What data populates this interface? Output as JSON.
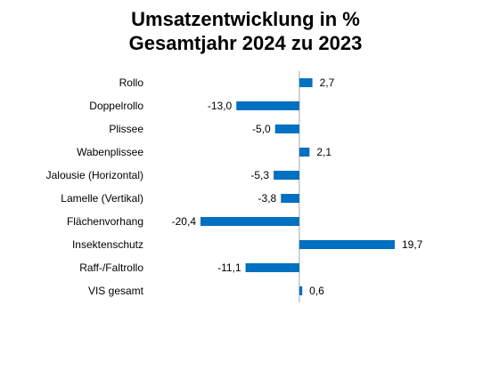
{
  "chart_data": {
    "type": "bar",
    "orientation": "horizontal",
    "title_lines": [
      "Umsatzentwicklung in %",
      "Gesamtjahr 2024 zu 2023"
    ],
    "categories": [
      "Rollo",
      "Doppelrollo",
      "Plissee",
      "Wabenplissee",
      "Jalousie (Horizontal)",
      "Lamelle (Vertikal)",
      "Flächenvorhang",
      "Insektenschutz",
      "Raff-/Faltrollo",
      "VIS gesamt"
    ],
    "values": [
      2.7,
      -13.0,
      -5.0,
      2.1,
      -5.3,
      -3.8,
      -20.4,
      19.7,
      -11.1,
      0.6
    ],
    "value_labels": [
      "2,7",
      "-13,0",
      "-5,0",
      "2,1",
      "-5,3",
      "-3,8",
      "-20,4",
      "19,7",
      "-11,1",
      "0,6"
    ],
    "xlim": [
      -20.4,
      19.7
    ],
    "grid": false,
    "legend": "none",
    "bar_color": "#0070C0",
    "axis_color": "#A6A6A6"
  }
}
